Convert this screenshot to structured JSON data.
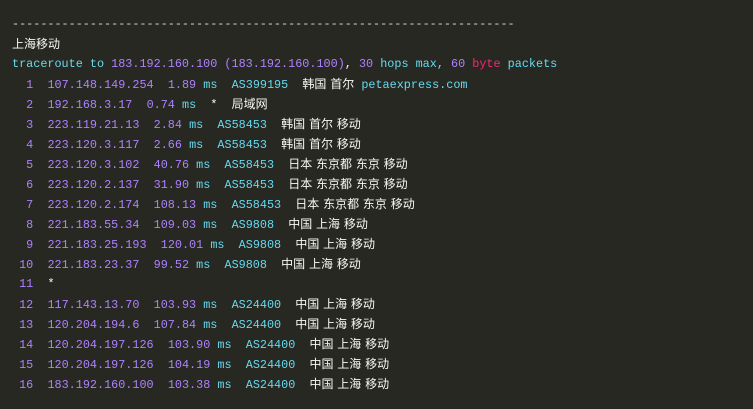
{
  "separator": "-----------------------------------------------------------------------",
  "title": "上海移动",
  "command": {
    "prefix": "traceroute to ",
    "target": "183.192.160.100",
    "target_paren": "(183.192.160.100)",
    "comma": ", ",
    "hops": "30",
    "hops_text": " hops max, ",
    "bytes": "60",
    "byte_word": "byte",
    "packets": " packets"
  },
  "hops": [
    {
      "n": " 1",
      "ip": "107.148.149.254",
      "ms": "1.89",
      "asn": "AS399195",
      "loc": "韩国 首尔",
      "extra": "petaexpress.com"
    },
    {
      "n": " 2",
      "ip": "192.168.3.17",
      "ms": "0.74",
      "asn": "*",
      "loc": "局域网"
    },
    {
      "n": " 3",
      "ip": "223.119.21.13",
      "ms": "2.84",
      "asn": "AS58453",
      "loc": "韩国 首尔 移动"
    },
    {
      "n": " 4",
      "ip": "223.120.3.117",
      "ms": "2.66",
      "asn": "AS58453",
      "loc": "韩国 首尔 移动"
    },
    {
      "n": " 5",
      "ip": "223.120.3.102",
      "ms": "40.76",
      "asn": "AS58453",
      "loc": "日本 东京都 东京 移动"
    },
    {
      "n": " 6",
      "ip": "223.120.2.137",
      "ms": "31.90",
      "asn": "AS58453",
      "loc": "日本 东京都 东京 移动"
    },
    {
      "n": " 7",
      "ip": "223.120.2.174",
      "ms": "108.13",
      "asn": "AS58453",
      "loc": "日本 东京都 东京 移动"
    },
    {
      "n": " 8",
      "ip": "221.183.55.34",
      "ms": "109.03",
      "asn": "AS9808",
      "loc": "中国 上海 移动"
    },
    {
      "n": " 9",
      "ip": "221.183.25.193",
      "ms": "120.01",
      "asn": "AS9808",
      "loc": "中国 上海 移动"
    },
    {
      "n": "10",
      "ip": "221.183.23.37",
      "ms": "99.52",
      "asn": "AS9808",
      "loc": "中国 上海 移动"
    },
    {
      "n": "11",
      "ip": "*"
    },
    {
      "n": "12",
      "ip": "117.143.13.70",
      "ms": "103.93",
      "asn": "AS24400",
      "loc": "中国 上海 移动"
    },
    {
      "n": "13",
      "ip": "120.204.194.6",
      "ms": "107.84",
      "asn": "AS24400",
      "loc": "中国 上海 移动"
    },
    {
      "n": "14",
      "ip": "120.204.197.126",
      "ms": "103.90",
      "asn": "AS24400",
      "loc": "中国 上海 移动"
    },
    {
      "n": "15",
      "ip": "120.204.197.126",
      "ms": "104.19",
      "asn": "AS24400",
      "loc": "中国 上海 移动"
    },
    {
      "n": "16",
      "ip": "183.192.160.100",
      "ms": "103.38",
      "asn": "AS24400",
      "loc": "中国 上海 移动"
    }
  ],
  "unit": "ms",
  "colors": {
    "background": "#272822",
    "number": "#ae81ff",
    "keyword": "#66d9ef",
    "text": "#f8f8f2",
    "highlight": "#f92672"
  }
}
